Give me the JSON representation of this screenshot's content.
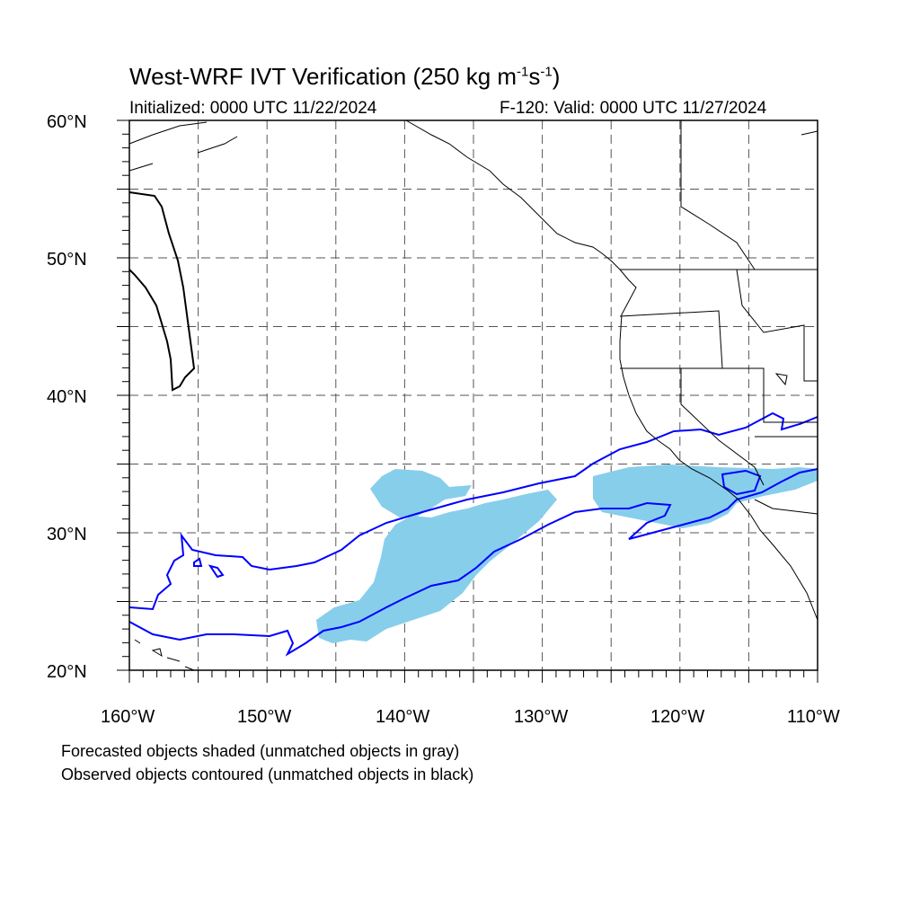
{
  "title": "West-WRF IVT Verification (250 kg m",
  "title_sup1": "-1",
  "title_mid": "s",
  "title_sup2": "-1",
  "title_end": ")",
  "initialized": "Initialized: 0000 UTC 11/22/2024",
  "valid": "F-120: Valid: 0000 UTC 11/27/2024",
  "notes": {
    "forecast": "Forecasted objects shaded (unmatched objects in gray)",
    "observed": "Observed objects contoured (unmatched objects in black)"
  },
  "axes": {
    "lat_labels": [
      "60°N",
      "50°N",
      "40°N",
      "30°N",
      "20°N"
    ],
    "lon_labels": [
      "160°W",
      "150°W",
      "140°W",
      "130°W",
      "120°W",
      "110°W"
    ],
    "lat_range": [
      20,
      60
    ],
    "lon_range": [
      -160,
      -110
    ]
  },
  "colors": {
    "forecast_fill": "#87CEEB",
    "observed_contour": "#0000ff",
    "coastline": "#000000",
    "grid": "#555555"
  }
}
